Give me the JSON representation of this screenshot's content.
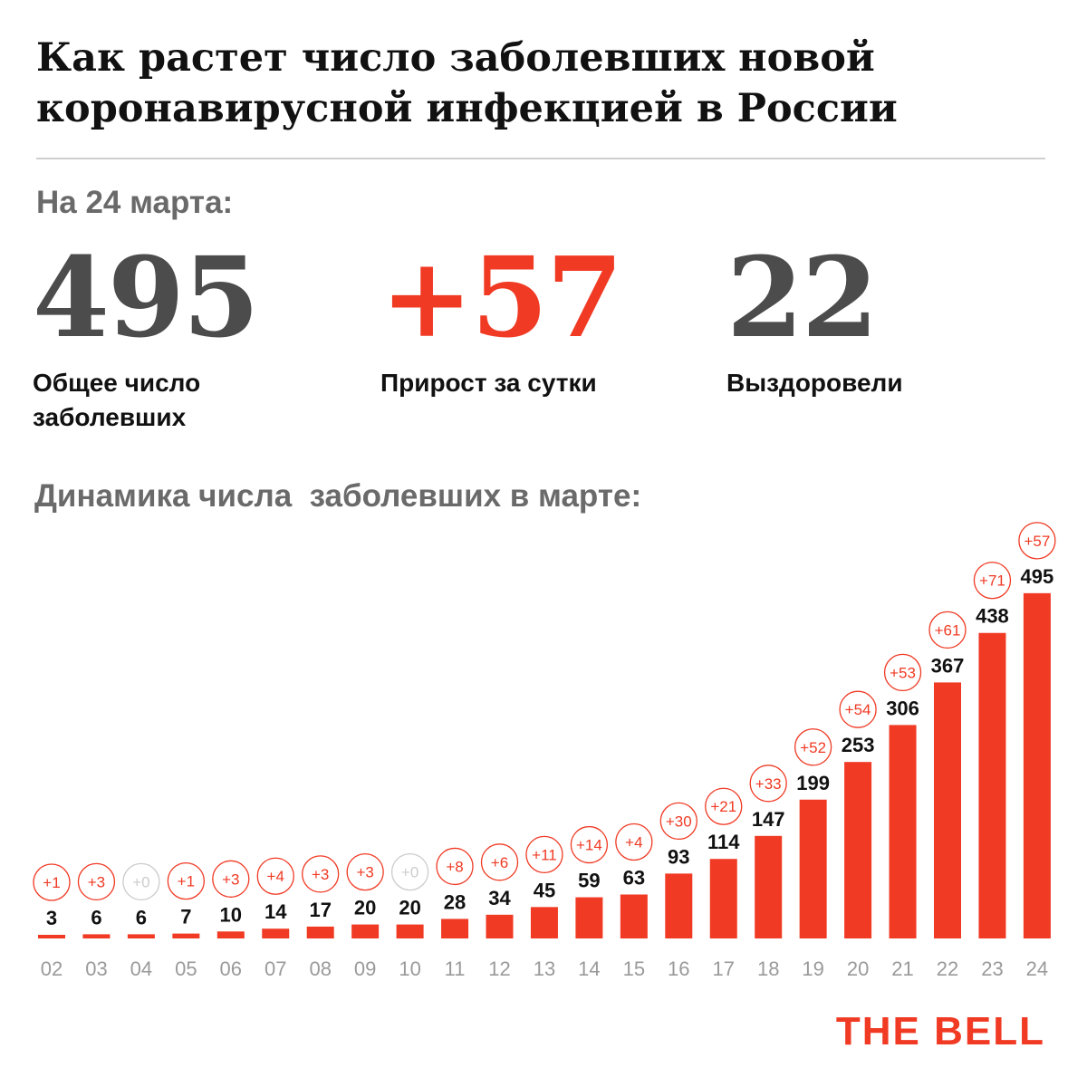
{
  "header": {
    "title_line1": "Как растет число заболевших новой",
    "title_line2": "коронавирусной инфекцией в России",
    "as_of": "На 24 марта:"
  },
  "stats": {
    "total": {
      "value": "495",
      "label_line1": "Общее число",
      "label_line2": "заболевших"
    },
    "growth": {
      "value": "+57",
      "label": "Прирост за сутки"
    },
    "recovered": {
      "value": "22",
      "label": "Выздоровели"
    }
  },
  "chart_title": "Динамика числа  заболевших в марте:",
  "brand": {
    "logo": "THE BELL",
    "color": "#f03a24"
  },
  "colors": {
    "bar": "#f03a24",
    "increment_zero": "#cccccc",
    "axis_label": "#9a9a9a",
    "stat_gray": "#4c4c4c"
  },
  "chart_data": {
    "type": "bar",
    "categories": [
      "02",
      "03",
      "04",
      "05",
      "06",
      "07",
      "08",
      "09",
      "10",
      "11",
      "12",
      "13",
      "14",
      "15",
      "16",
      "17",
      "18",
      "19",
      "20",
      "21",
      "22",
      "23",
      "24"
    ],
    "values": [
      3,
      6,
      6,
      7,
      10,
      14,
      17,
      20,
      20,
      28,
      34,
      45,
      59,
      63,
      93,
      114,
      147,
      199,
      253,
      306,
      367,
      438,
      495
    ],
    "increments": [
      "+1",
      "+3",
      "+0",
      "+1",
      "+3",
      "+4",
      "+3",
      "+3",
      "+0",
      "+8",
      "+6",
      "+11",
      "+14",
      "+4",
      "+30",
      "+21",
      "+33",
      "+52",
      "+54",
      "+53",
      "+61",
      "+71",
      "+57"
    ],
    "title": "Динамика числа  заболевших в марте:",
    "xlabel": "",
    "ylabel": ""
  }
}
